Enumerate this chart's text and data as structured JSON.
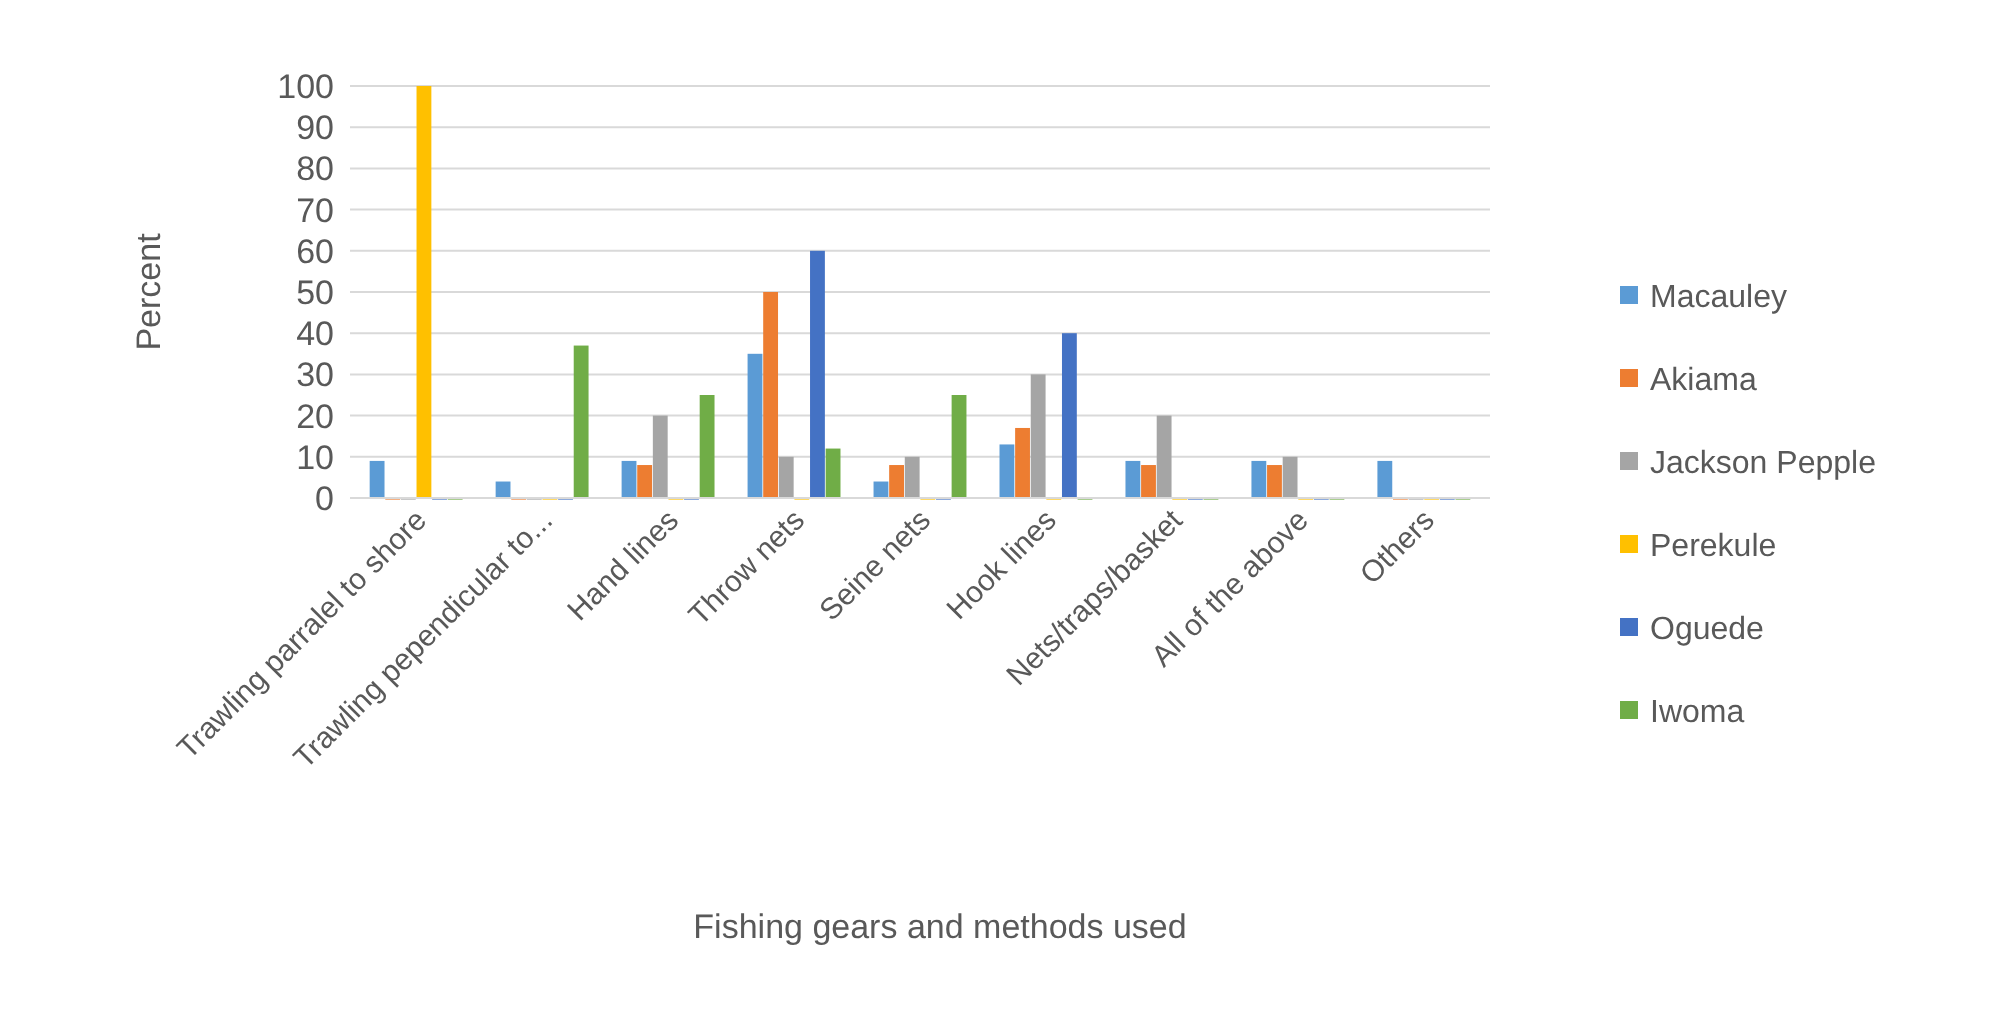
{
  "chart_data": {
    "type": "bar",
    "xlabel": "Fishing gears and methods used",
    "ylabel": "Percent",
    "categories": [
      "Trawling parralel to shore",
      "Trawling pependicular to...",
      "Hand lines",
      "Throw nets",
      "Seine nets",
      "Hook lines",
      "Nets/traps/basket",
      "All of the above",
      "Others"
    ],
    "series": [
      {
        "name": "Macauley",
        "color": "#5b9bd5",
        "values": [
          9,
          4,
          9,
          35,
          4,
          13,
          9,
          9,
          9
        ]
      },
      {
        "name": "Akiama",
        "color": "#ed7d31",
        "values": [
          0,
          0,
          8,
          50,
          8,
          17,
          8,
          8,
          0
        ]
      },
      {
        "name": "Jackson Pepple",
        "color": "#a5a5a5",
        "values": [
          0,
          0,
          20,
          10,
          10,
          30,
          20,
          10,
          0
        ]
      },
      {
        "name": "Perekule",
        "color": "#ffc000",
        "values": [
          100,
          0,
          0,
          0,
          0,
          0,
          0,
          0,
          0
        ]
      },
      {
        "name": "Oguede",
        "color": "#4472c4",
        "values": [
          0,
          0,
          0,
          60,
          0,
          40,
          0,
          0,
          0
        ]
      },
      {
        "name": "Iwoma",
        "color": "#70ad47",
        "values": [
          0,
          37,
          25,
          12,
          25,
          0,
          0,
          0,
          0
        ]
      }
    ],
    "ylim": [
      0,
      100
    ],
    "yticks": [
      0,
      10,
      20,
      30,
      40,
      50,
      60,
      70,
      80,
      90,
      100
    ],
    "grid": "y",
    "legend": "right"
  }
}
